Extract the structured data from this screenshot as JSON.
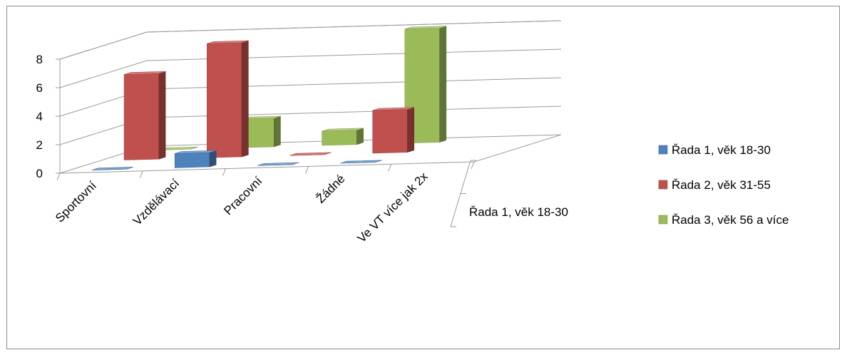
{
  "chart_data": {
    "type": "bar",
    "subtype": "3d-column",
    "categories": [
      "Sportovní",
      "Vzdělávací",
      "Pracovní",
      "Žádné",
      "Ve VT více jak 2x"
    ],
    "series": [
      {
        "name": "Řada 1, věk 18-30",
        "color": "#4f81bd",
        "values": [
          0,
          1,
          0,
          0,
          0
        ]
      },
      {
        "name": "Řada 2, věk 31-55",
        "color": "#c0504d",
        "values": [
          6,
          8,
          0,
          3,
          0
        ]
      },
      {
        "name": "Řada 3, věk 56 a více",
        "color": "#9bbb59",
        "values": [
          0,
          2,
          1,
          8,
          0
        ]
      }
    ],
    "depth_axis_label": "Řada 1, věk 18-30",
    "y_ticks": [
      "0",
      "2",
      "4",
      "6",
      "8"
    ],
    "ylim": [
      0,
      8
    ],
    "grid": true,
    "legend_position": "right"
  }
}
